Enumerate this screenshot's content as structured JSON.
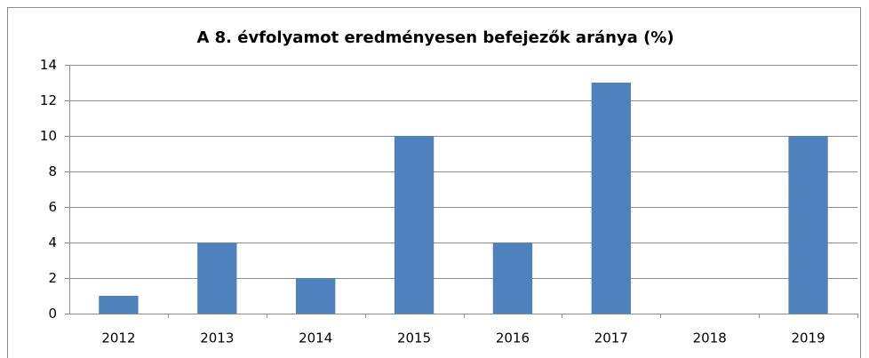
{
  "chart_data": {
    "type": "bar",
    "title": "A 8. évfolyamot eredményesen befejezők aránya (%)",
    "categories": [
      "2012",
      "2013",
      "2014",
      "2015",
      "2016",
      "2017",
      "2018",
      "2019"
    ],
    "values": [
      1,
      4,
      2,
      10,
      4,
      13,
      0,
      10
    ],
    "color": "#4f81bd",
    "ylim": [
      0,
      14
    ],
    "yticks": [
      0,
      2,
      4,
      6,
      8,
      10,
      12,
      14
    ],
    "grid": true
  }
}
